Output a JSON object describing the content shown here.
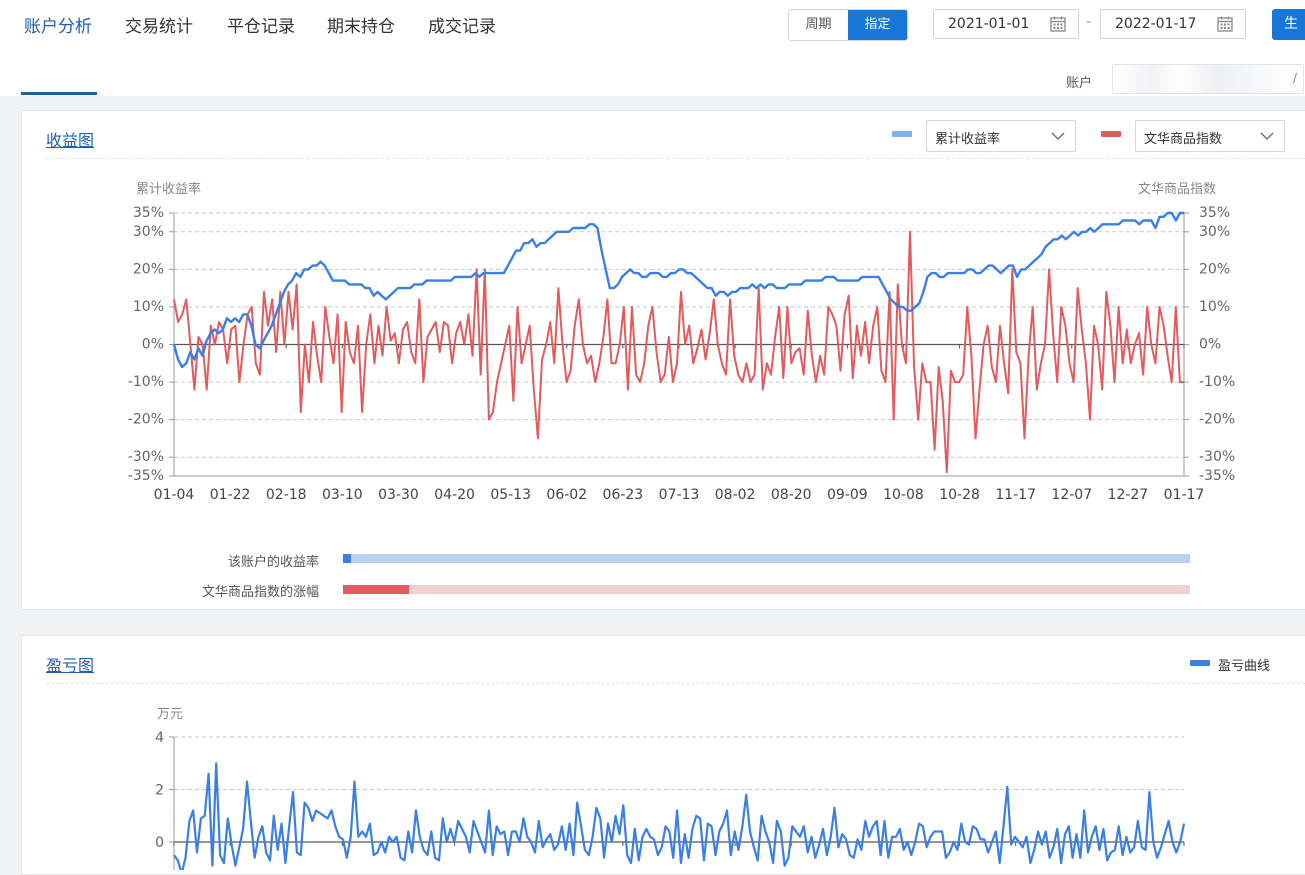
{
  "nav": {
    "tabs": [
      "账户分析",
      "交易统计",
      "平仓记录",
      "期末持仓",
      "成交记录"
    ],
    "active_tab": 0
  },
  "period_toggle": {
    "options": [
      "周期",
      "指定"
    ],
    "selected": 1
  },
  "date_range": {
    "start": "2021-01-01",
    "separator": "-",
    "end": "2022-01-17"
  },
  "generate_button": {
    "label": "生"
  },
  "account": {
    "label": "账户",
    "value": ""
  },
  "colors": {
    "accent": "#1677d9",
    "nav_active": "#1f5fae",
    "series_blue": "#3b7fe3",
    "series_red": "#e25b5f"
  },
  "returns_card": {
    "title": "收益图",
    "select_left": "累计收益率",
    "select_right": "文华商品指数",
    "left_axis_title": "累计收益率",
    "right_axis_title": "文华商品指数",
    "compare_bars": [
      {
        "label": "该账户的收益率",
        "fill": 0.01
      },
      {
        "label": "文华商品指数的涨幅",
        "fill": 0.078
      }
    ]
  },
  "pnl_card": {
    "title": "盈亏图",
    "legend": "盈亏曲线",
    "y_axis_title": "万元"
  },
  "chart_data": [
    {
      "type": "line",
      "title": "收益图",
      "xlabel": "",
      "ylabel": "累计收益率",
      "ylabel_right": "文华商品指数",
      "x_ticks": [
        "01-04",
        "01-22",
        "02-18",
        "03-10",
        "03-30",
        "04-20",
        "05-13",
        "06-02",
        "06-23",
        "07-13",
        "08-02",
        "08-20",
        "09-09",
        "10-08",
        "10-28",
        "11-17",
        "12-07",
        "12-27",
        "01-17"
      ],
      "y_ticks": [
        "35%",
        "30%",
        "20%",
        "10%",
        "0%",
        "-10%",
        "-20%",
        "-30%",
        "-35%"
      ],
      "ylim": [
        -35,
        35
      ],
      "grid": true,
      "series": [
        {
          "name": "累计收益率",
          "color": "#3b7fe3",
          "axis": "left",
          "values": [
            0,
            -4,
            -6,
            -5,
            -2,
            -4,
            -1,
            -3,
            1,
            3,
            4,
            3,
            4,
            7,
            6,
            7,
            6,
            8,
            8,
            5,
            0,
            -1,
            1,
            3,
            5,
            8,
            11,
            14,
            16,
            17,
            19,
            18,
            20,
            20,
            21,
            21,
            22,
            21,
            19,
            17,
            17,
            17,
            17,
            16,
            16,
            16,
            16,
            15,
            15,
            13,
            14,
            13,
            12,
            13,
            14,
            15,
            15,
            15,
            15,
            16,
            16,
            16,
            17,
            17,
            17,
            17,
            17,
            17,
            17,
            18,
            18,
            18,
            18,
            18,
            19,
            18,
            19,
            19,
            19,
            19,
            19,
            19,
            21,
            23,
            25,
            25,
            27,
            27,
            28,
            26,
            27,
            27,
            28,
            29,
            30,
            30,
            30,
            30,
            31,
            31,
            31,
            31,
            32,
            32,
            31,
            25,
            20,
            15,
            15,
            16,
            18,
            19,
            20,
            19,
            19,
            18,
            18,
            19,
            19,
            19,
            18,
            18,
            19,
            19,
            20,
            20,
            19,
            19,
            18,
            17,
            16,
            15,
            15,
            13,
            14,
            14,
            13,
            14,
            14,
            15,
            15,
            15,
            16,
            15,
            16,
            15,
            16,
            16,
            15,
            15,
            15,
            16,
            16,
            16,
            16,
            17,
            17,
            17,
            17,
            17,
            18,
            18,
            18,
            17,
            17,
            17,
            17,
            17,
            17,
            18,
            18,
            18,
            18,
            18,
            16,
            14,
            12,
            11,
            10,
            10,
            9,
            9,
            10,
            11,
            14,
            18,
            19,
            19,
            18,
            18,
            19,
            19,
            19,
            19,
            19,
            20,
            20,
            19,
            19,
            20,
            21,
            21,
            20,
            19,
            20,
            21,
            21,
            18,
            20,
            20,
            21,
            22,
            23,
            24,
            26,
            27,
            28,
            28,
            29,
            28,
            29,
            30,
            29,
            30,
            30,
            31,
            30,
            31,
            32,
            32,
            32,
            32,
            32,
            33,
            33,
            33,
            33,
            32,
            33,
            33,
            33,
            31,
            34,
            34,
            35,
            35,
            33,
            35,
            35
          ]
        },
        {
          "name": "文华商品指数",
          "color": "#e25b5f",
          "axis": "right",
          "values": [
            12,
            6,
            8,
            12,
            0,
            -12,
            2,
            0,
            -12,
            5,
            0,
            6,
            4,
            -5,
            4,
            5,
            -10,
            0,
            8,
            10,
            -5,
            -8,
            14,
            5,
            12,
            -2,
            14,
            0,
            14,
            4,
            16,
            -18,
            0,
            -10,
            6,
            -3,
            -10,
            10,
            2,
            -5,
            8,
            -18,
            6,
            -2,
            -5,
            5,
            -18,
            0,
            8,
            -5,
            5,
            -3,
            10,
            1,
            3,
            -5,
            4,
            6,
            -2,
            -5,
            12,
            -10,
            2,
            4,
            6,
            -2,
            6,
            5,
            -5,
            3,
            6,
            0,
            8,
            -3,
            20,
            -8,
            20,
            -20,
            -18,
            -10,
            -5,
            0,
            5,
            -15,
            10,
            -5,
            0,
            5,
            -12,
            -25,
            -4,
            0,
            6,
            -5,
            15,
            0,
            -10,
            -7,
            5,
            12,
            0,
            -5,
            -3,
            -10,
            -5,
            2,
            12,
            -5,
            -5,
            0,
            10,
            -12,
            10,
            -8,
            -10,
            -5,
            5,
            10,
            -2,
            -10,
            -8,
            2,
            -10,
            -5,
            14,
            0,
            5,
            -5,
            -1,
            4,
            -4,
            3,
            12,
            0,
            -5,
            -8,
            12,
            -3,
            -8,
            -10,
            -5,
            -10,
            -8,
            15,
            -12,
            -5,
            -8,
            2,
            10,
            -9,
            10,
            -5,
            -2,
            -1,
            -8,
            9,
            -3,
            -10,
            -3,
            -8,
            10,
            8,
            5,
            -7,
            8,
            13,
            -9,
            5,
            -3,
            6,
            -5,
            5,
            10,
            -7,
            -10,
            14,
            -20,
            16,
            0,
            -5,
            30,
            -6,
            -20,
            -5,
            -10,
            -10,
            -28,
            -6,
            -15,
            -34,
            -7,
            -10,
            -10,
            -8,
            10,
            -3,
            -25,
            -12,
            0,
            5,
            -6,
            -10,
            5,
            -5,
            -13,
            20,
            -2,
            -5,
            -25,
            -3,
            10,
            -12,
            -5,
            0,
            20,
            3,
            -10,
            10,
            5,
            -5,
            -10,
            15,
            4,
            -5,
            -20,
            5,
            0,
            -12,
            14,
            5,
            -10,
            10,
            -5,
            4,
            -5,
            0,
            3,
            -8,
            10,
            0,
            -5,
            10,
            5,
            -3,
            -10,
            10,
            -10,
            -10
          ]
        }
      ]
    },
    {
      "type": "line",
      "title": "盈亏图",
      "ylabel": "万元",
      "y_ticks": [
        "4",
        "2",
        "0"
      ],
      "ylim": [
        -1,
        4
      ],
      "grid": true,
      "series": [
        {
          "name": "盈亏曲线",
          "color": "#3b7fe3",
          "values": [
            -0.5,
            -0.7,
            -1.2,
            -0.6,
            0.8,
            1.2,
            -0.4,
            0.9,
            1.0,
            2.6,
            -0.9,
            3.0,
            -0.5,
            -0.8,
            0.9,
            -0.1,
            -0.9,
            -0.2,
            0.5,
            2.3,
            0.8,
            -0.6,
            0.2,
            0.6,
            -0.4,
            -0.7,
            1.0,
            -0.3,
            0.7,
            -0.8,
            0.6,
            1.9,
            -0.4,
            -0.5,
            1.5,
            1.3,
            0.8,
            1.2,
            1.1,
            1.0,
            0.9,
            1.2,
            0.6,
            0.2,
            0.1,
            -0.6,
            0.2,
            2.3,
            0.2,
            0.4,
            0.2,
            0.7,
            -0.5,
            -0.4,
            0.0,
            -0.4,
            0.2,
            0.0,
            0.2,
            -0.6,
            -0.7,
            0.4,
            -0.4,
            1.2,
            0.2,
            -0.3,
            -0.5,
            0.4,
            -0.6,
            -0.7,
            0.9,
            0.0,
            0.5,
            0.0,
            0.8,
            0.5,
            0.2,
            -0.4,
            0.8,
            0.4,
            0.0,
            -0.4,
            1.2,
            -0.5,
            0.6,
            0.3,
            0.4,
            -0.5,
            0.4,
            0.4,
            0.0,
            0.9,
            0.2,
            0.0,
            -0.4,
            0.8,
            -0.2,
            0.1,
            0.3,
            -0.3,
            -0.1,
            0.6,
            -0.3,
            0.7,
            -0.5,
            1.5,
            0.6,
            -0.3,
            -0.5,
            0.2,
            1.3,
            0.9,
            -0.6,
            0.7,
            0.0,
            1.0,
            0.3,
            1.4,
            -0.5,
            -0.8,
            0.5,
            -0.7,
            0.2,
            0.5,
            0.2,
            0.1,
            -0.5,
            -0.2,
            0.6,
            0.4,
            -0.6,
            1.2,
            -0.8,
            0.3,
            -0.6,
            0.5,
            1.0,
            0.9,
            -0.7,
            0.7,
            0.6,
            -0.5,
            0.4,
            0.7,
            1.2,
            -0.5,
            0.4,
            -0.3,
            0.6,
            1.8,
            0.4,
            -0.2,
            -0.7,
            1.0,
            0.4,
            0.0,
            -0.8,
            0.8,
            0.4,
            -0.9,
            -0.6,
            0.6,
            0.4,
            0.2,
            0.6,
            -0.4,
            0.2,
            -0.6,
            -0.1,
            0.5,
            -0.5,
            0.2,
            1.3,
            -0.2,
            0.3,
            0.1,
            -0.5,
            -0.6,
            0.1,
            -0.3,
            0.8,
            0.2,
            0.6,
            0.8,
            -0.5,
            0.8,
            -0.6,
            0.2,
            0.2,
            0.5,
            -0.3,
            0.0,
            -0.5,
            0.0,
            0.7,
            0.6,
            -0.2,
            0.2,
            0.4,
            0.4,
            0.4,
            -0.6,
            -0.4,
            0.0,
            -0.3,
            0.7,
            0.0,
            -0.1,
            0.6,
            0.5,
            0.1,
            0.1,
            -0.4,
            0.0,
            0.4,
            -0.8,
            0.6,
            2.1,
            -0.1,
            0.2,
            0.0,
            -0.2,
            0.2,
            -0.8,
            -0.3,
            0.4,
            -0.1,
            0.4,
            -0.6,
            -0.2,
            0.5,
            -0.8,
            0.3,
            0.6,
            -0.6,
            0.3,
            -0.6,
            1.2,
            -0.4,
            0.2,
            0.6,
            -0.3,
            0.5,
            -0.7,
            -0.4,
            -0.3,
            0.6,
            -0.5,
            0.2,
            -0.4,
            -0.2,
            0.8,
            -0.2,
            -0.3,
            1.9,
            0.0,
            -0.6,
            -0.2,
            0.3,
            0.8,
            0.0,
            -0.4,
            0.0,
            0.7
          ]
        }
      ]
    }
  ]
}
